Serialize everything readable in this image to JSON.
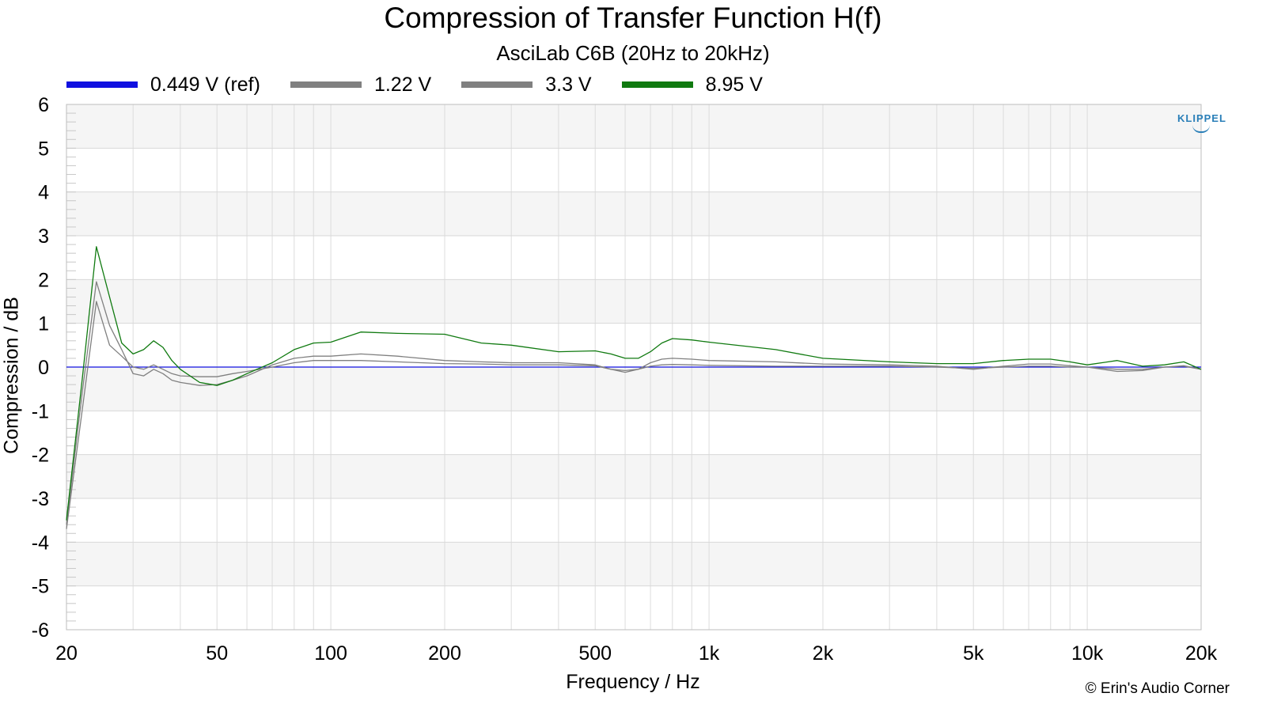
{
  "chart_data": {
    "type": "line",
    "title": "Compression of Transfer Function H(f)",
    "subtitle": "AsciLab C6B (20Hz to 20kHz)",
    "xlabel": "Frequency / Hz",
    "ylabel": "Compression / dB",
    "xscale": "log",
    "xlim": [
      20,
      20000
    ],
    "ylim": [
      -6,
      6
    ],
    "grid": true,
    "legend_position": "top",
    "xticks": [
      {
        "value": 20,
        "label": "20"
      },
      {
        "value": 50,
        "label": "50"
      },
      {
        "value": 100,
        "label": "100"
      },
      {
        "value": 200,
        "label": "200"
      },
      {
        "value": 500,
        "label": "500"
      },
      {
        "value": 1000,
        "label": "1k"
      },
      {
        "value": 2000,
        "label": "2k"
      },
      {
        "value": 5000,
        "label": "5k"
      },
      {
        "value": 10000,
        "label": "10k"
      },
      {
        "value": 20000,
        "label": "20k"
      }
    ],
    "yticks": [
      6,
      5,
      4,
      3,
      2,
      1,
      0,
      -1,
      -2,
      -3,
      -4,
      -5,
      -6
    ],
    "series": [
      {
        "name": "0.449 V (ref)",
        "color": "#1010e0",
        "x": [
          20,
          20000
        ],
        "y": [
          0,
          0
        ]
      },
      {
        "name": "1.22 V",
        "color": "#808080",
        "x": [
          20,
          22,
          24,
          26,
          28,
          30,
          32,
          34,
          36,
          38,
          40,
          45,
          50,
          55,
          60,
          70,
          80,
          90,
          100,
          120,
          150,
          200,
          250,
          300,
          400,
          500,
          550,
          600,
          650,
          700,
          750,
          800,
          900,
          1000,
          1500,
          2000,
          3000,
          4000,
          5000,
          6000,
          7000,
          8000,
          9000,
          10000,
          12000,
          14000,
          16000,
          18000,
          20000
        ],
        "y": [
          -3.7,
          -1.0,
          1.5,
          0.5,
          0.25,
          0.0,
          -0.05,
          0.05,
          -0.05,
          -0.15,
          -0.2,
          -0.22,
          -0.22,
          -0.15,
          -0.1,
          0.0,
          0.1,
          0.15,
          0.15,
          0.15,
          0.12,
          0.08,
          0.07,
          0.05,
          0.05,
          0.03,
          -0.05,
          -0.08,
          -0.05,
          0.02,
          0.05,
          0.06,
          0.05,
          0.04,
          0.02,
          0.02,
          0.02,
          0.0,
          -0.03,
          0.0,
          0.02,
          0.02,
          0.0,
          0.0,
          -0.05,
          -0.05,
          0.0,
          0.02,
          -0.05
        ]
      },
      {
        "name": "3.3 V",
        "color": "#808080",
        "x": [
          20,
          22,
          24,
          26,
          28,
          30,
          32,
          34,
          36,
          38,
          40,
          45,
          50,
          55,
          60,
          70,
          80,
          90,
          100,
          120,
          150,
          200,
          250,
          300,
          400,
          500,
          550,
          600,
          650,
          700,
          750,
          800,
          900,
          1000,
          1500,
          2000,
          3000,
          4000,
          5000,
          6000,
          7000,
          8000,
          9000,
          10000,
          12000,
          14000,
          16000,
          18000,
          20000
        ],
        "y": [
          -3.6,
          -0.6,
          1.95,
          0.95,
          0.4,
          -0.15,
          -0.2,
          -0.05,
          -0.15,
          -0.3,
          -0.35,
          -0.42,
          -0.4,
          -0.3,
          -0.2,
          0.05,
          0.2,
          0.25,
          0.25,
          0.3,
          0.25,
          0.15,
          0.12,
          0.1,
          0.1,
          0.05,
          -0.05,
          -0.12,
          -0.05,
          0.1,
          0.18,
          0.2,
          0.18,
          0.15,
          0.12,
          0.07,
          0.05,
          0.02,
          -0.05,
          0.02,
          0.07,
          0.07,
          0.03,
          0.0,
          -0.1,
          -0.08,
          0.0,
          0.03,
          -0.05
        ]
      },
      {
        "name": "8.95 V",
        "color": "#107a10",
        "x": [
          20,
          22,
          24,
          26,
          28,
          30,
          32,
          34,
          36,
          38,
          40,
          45,
          50,
          55,
          60,
          70,
          80,
          90,
          100,
          120,
          150,
          200,
          250,
          300,
          400,
          500,
          550,
          600,
          650,
          700,
          750,
          800,
          900,
          1000,
          1500,
          2000,
          3000,
          4000,
          5000,
          6000,
          7000,
          8000,
          9000,
          10000,
          12000,
          14000,
          16000,
          18000,
          20000
        ],
        "y": [
          -3.5,
          -0.3,
          2.75,
          1.6,
          0.55,
          0.3,
          0.4,
          0.6,
          0.45,
          0.15,
          -0.05,
          -0.35,
          -0.42,
          -0.3,
          -0.15,
          0.1,
          0.4,
          0.55,
          0.57,
          0.8,
          0.77,
          0.75,
          0.55,
          0.5,
          0.35,
          0.37,
          0.3,
          0.2,
          0.2,
          0.35,
          0.55,
          0.65,
          0.62,
          0.57,
          0.4,
          0.2,
          0.12,
          0.08,
          0.08,
          0.15,
          0.18,
          0.18,
          0.12,
          0.05,
          0.15,
          0.02,
          0.05,
          0.12,
          -0.05
        ]
      }
    ]
  },
  "footer": {
    "credit": "© Erin's Audio Corner",
    "logo_text": "KLIPPEL"
  }
}
